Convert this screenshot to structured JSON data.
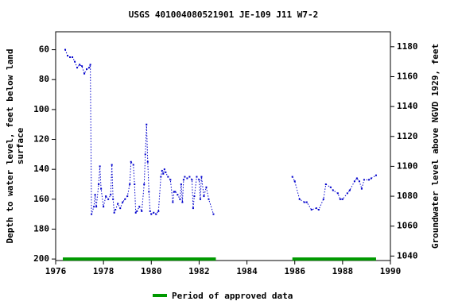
{
  "chart_data": {
    "type": "line",
    "title": "USGS 401004080521901 JE-109 J11 W7-2",
    "ylabel": [
      "Depth to water level, feet below land",
      "surface"
    ],
    "y2label": "Groundwater level above NGVD 1929, feet",
    "xlim": [
      1976,
      1990
    ],
    "xticks": [
      1976,
      1978,
      1980,
      1982,
      1984,
      1986,
      1988,
      1990
    ],
    "ylim": [
      201,
      48
    ],
    "yticks": [
      60,
      80,
      100,
      120,
      140,
      160,
      180,
      200
    ],
    "y2lim": [
      1037,
      1190
    ],
    "y2ticks": [
      1040,
      1060,
      1080,
      1100,
      1120,
      1140,
      1160,
      1180
    ],
    "series": [
      {
        "color": "#0000cc",
        "x": [
          1976.4,
          1976.5,
          1976.6,
          1976.7,
          1976.8,
          1976.9,
          1977.0,
          1977.1,
          1977.2,
          1977.3,
          1977.4,
          1977.45,
          1977.5,
          1977.6,
          1977.65,
          1977.7,
          1977.8,
          1977.85,
          1977.9,
          1978.0,
          1978.1,
          1978.2,
          1978.3,
          1978.35,
          1978.4,
          1978.45,
          1978.5,
          1978.6,
          1978.7,
          1978.8,
          1978.9,
          1979.0,
          1979.1,
          1979.15,
          1979.25,
          1979.3,
          1979.35,
          1979.4,
          1979.5,
          1979.6,
          1979.7,
          1979.75,
          1979.8,
          1979.85,
          1979.9,
          1979.95,
          1980.0,
          1980.1,
          1980.2,
          1980.3,
          1980.4,
          1980.45,
          1980.5,
          1980.55,
          1980.6,
          1980.7,
          1980.8,
          1980.9,
          1980.95,
          1981.0,
          1981.1,
          1981.2,
          1981.25,
          1981.3,
          1981.35,
          1981.4,
          1981.5,
          1981.6,
          1981.7,
          1981.75,
          1981.8,
          1981.9,
          1982.0,
          1982.05,
          1982.1,
          1982.2,
          1982.3,
          1982.4,
          1982.6,
          1984,
          1985.9,
          1986.0,
          1986.2,
          1986.4,
          1986.5,
          1986.7,
          1986.9,
          1987.0,
          1987.2,
          1987.3,
          1987.5,
          1987.6,
          1987.8,
          1987.9,
          1988.0,
          1988.2,
          1988.3,
          1988.5,
          1988.6,
          1988.7,
          1988.8,
          1988.9,
          1989.1,
          1989.2,
          1989.4
        ],
        "values": [
          60,
          64,
          65,
          65,
          68,
          72,
          70,
          71,
          76,
          73,
          72,
          70,
          170,
          165,
          157,
          165,
          150,
          138,
          153,
          165,
          158,
          160,
          157,
          137,
          160,
          169,
          167,
          163,
          166,
          162,
          160,
          158,
          150,
          135,
          137,
          150,
          169,
          168,
          165,
          168,
          150,
          130,
          110,
          135,
          155,
          168,
          170,
          169,
          170,
          168,
          145,
          141,
          143,
          140,
          142,
          145,
          147,
          162,
          155,
          155,
          157,
          160,
          150,
          162,
          147,
          145,
          146,
          145,
          147,
          166,
          158,
          145,
          147,
          160,
          145,
          158,
          152,
          160,
          170,
          null,
          145,
          148,
          160,
          162,
          162,
          167,
          166,
          167,
          160,
          150,
          152,
          154,
          156,
          160,
          160,
          156,
          154,
          148,
          146,
          148,
          153,
          147,
          147,
          146,
          144
        ]
      }
    ],
    "approved_periods": {
      "name": "Period of approved data",
      "color": "#009900",
      "depth": 200,
      "ranges": [
        [
          1976.3,
          1982.7
        ],
        [
          1985.9,
          1989.4
        ]
      ]
    }
  }
}
